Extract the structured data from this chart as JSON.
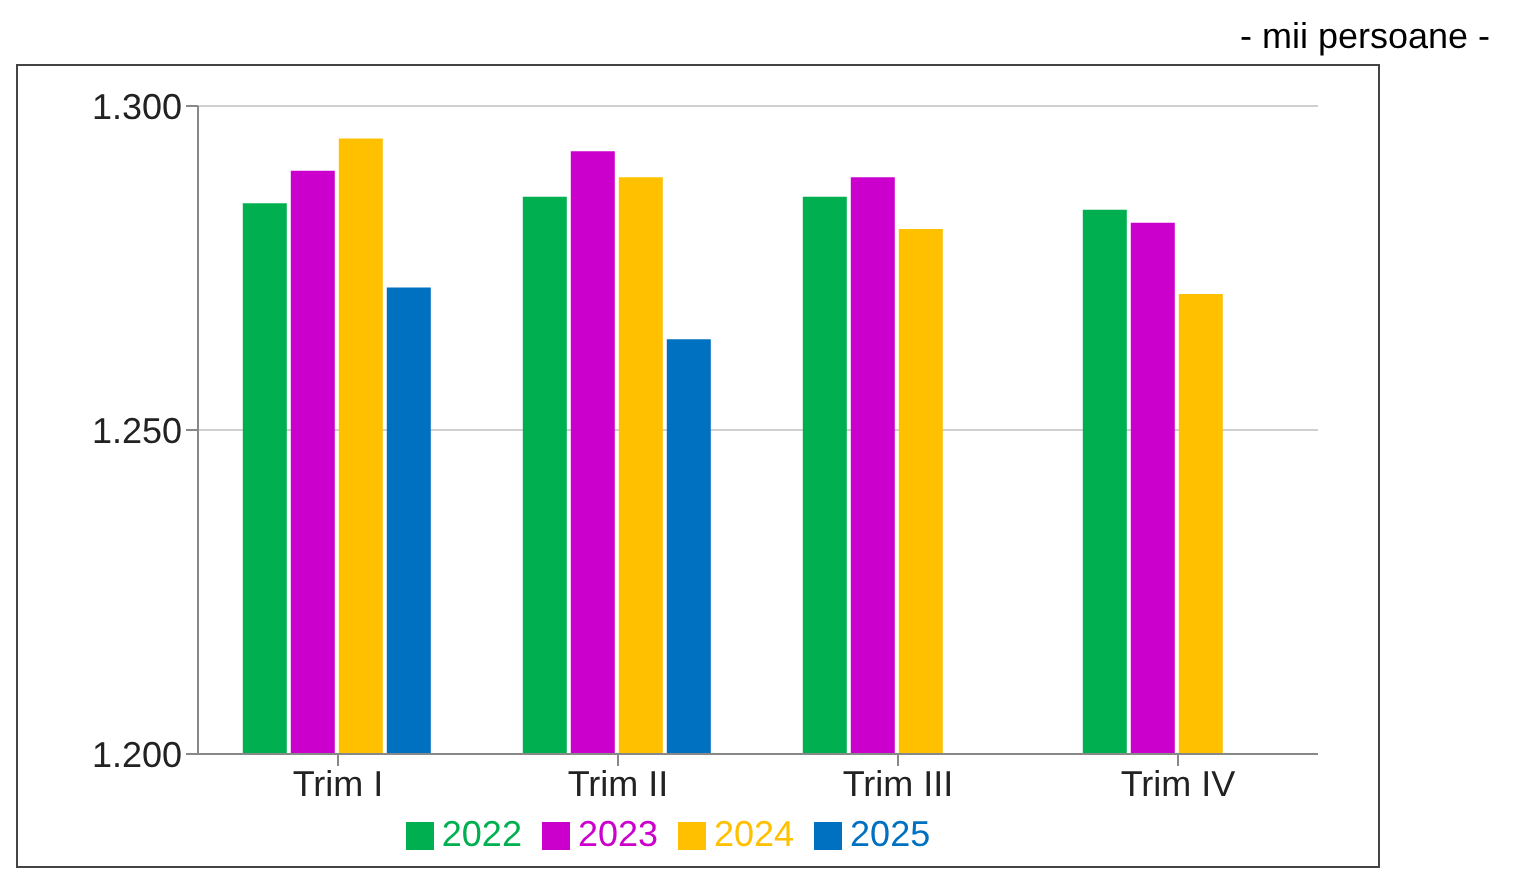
{
  "chart_data": {
    "type": "bar",
    "annotations": [
      "- mii persoane -"
    ],
    "categories": [
      "Trim I",
      "Trim II",
      "Trim III",
      "Trim IV"
    ],
    "series": [
      {
        "name": "2022",
        "color": "#00b050",
        "values": [
          1285,
          1286,
          1286,
          1284
        ]
      },
      {
        "name": "2023",
        "color": "#cc00cc",
        "values": [
          1290,
          1293,
          1289,
          1282
        ]
      },
      {
        "name": "2024",
        "color": "#ffc000",
        "values": [
          1295,
          1289,
          1281,
          1271
        ]
      },
      {
        "name": "2025",
        "color": "#0070c0",
        "values": [
          1272,
          1264,
          null,
          null
        ]
      }
    ],
    "ylim": [
      1200,
      1300
    ],
    "yticks": [
      {
        "value": 1200,
        "label": "1.200"
      },
      {
        "value": 1250,
        "label": "1.250"
      },
      {
        "value": 1300,
        "label": "1.300"
      }
    ],
    "grid": "y",
    "legend": "bottom"
  }
}
